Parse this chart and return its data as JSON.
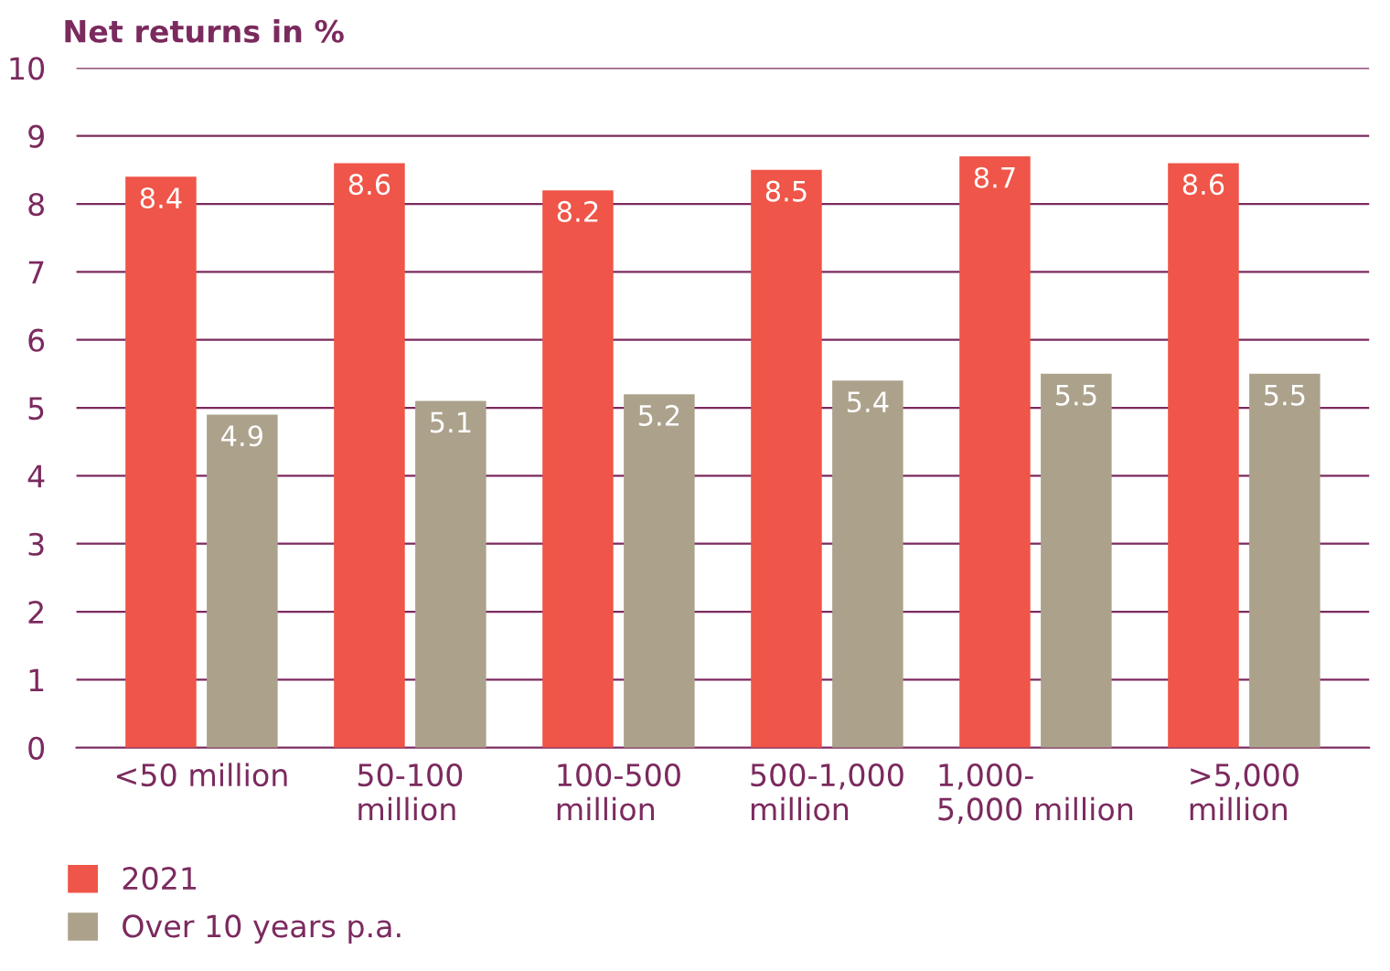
{
  "chart_data": {
    "type": "bar",
    "title": "Net returns in %",
    "categories": [
      "<50 million",
      "50-100\nmillion",
      "100-500\nmillion",
      "500-1,000\nmillion",
      "1,000-\n5,000 million",
      ">5,000\nmillion"
    ],
    "series": [
      {
        "name": "2021",
        "color": "#ef5548",
        "values": [
          8.4,
          8.6,
          8.2,
          8.5,
          8.7,
          8.6
        ]
      },
      {
        "name": "Over 10 years p.a.",
        "color": "#aca28c",
        "values": [
          4.9,
          5.1,
          5.2,
          5.4,
          5.5,
          5.5
        ]
      }
    ],
    "ylim": [
      0,
      10
    ],
    "yticks": [
      0,
      1,
      2,
      3,
      4,
      5,
      6,
      7,
      8,
      9,
      10
    ],
    "grid": "y",
    "legend": "bottom left",
    "data_labels": true
  }
}
